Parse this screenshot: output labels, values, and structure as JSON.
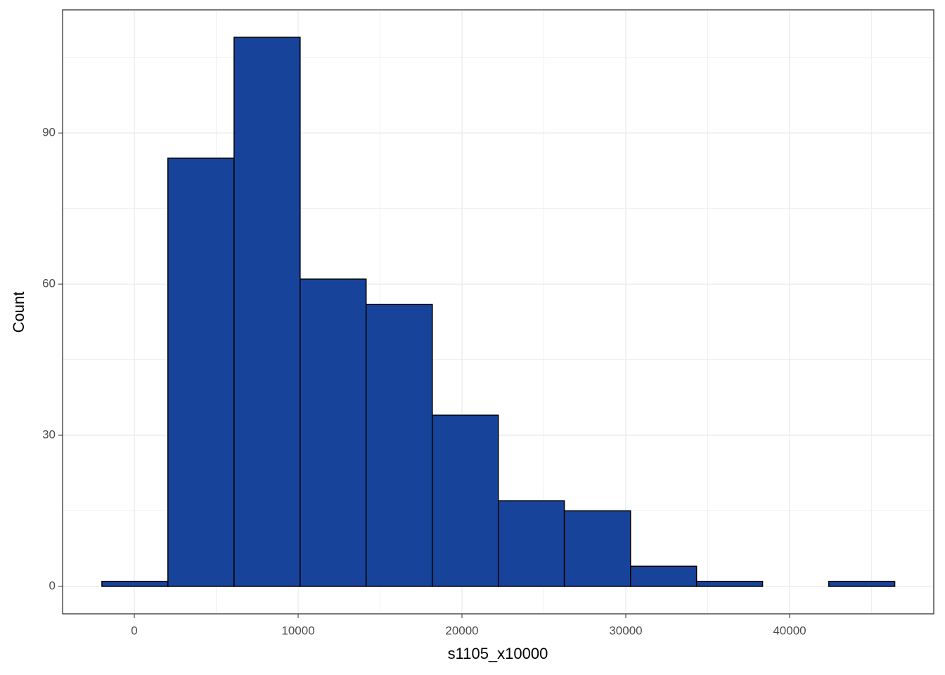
{
  "chart_data": {
    "type": "histogram",
    "x_label": "s1105_x10000",
    "y_label": "Count",
    "bins": [
      -1980,
      2050,
      6090,
      10120,
      14150,
      18190,
      22220,
      26250,
      30290,
      34320,
      38350,
      42390,
      46420
    ],
    "values": [
      1,
      85,
      109,
      61,
      56,
      34,
      17,
      15,
      4,
      1,
      0,
      1
    ],
    "color": "#17439a",
    "edge_color": "#000000",
    "xlim": [
      -4380,
      48800
    ],
    "ylim": [
      -5.45,
      114.45
    ],
    "xticks": [
      0,
      10000,
      20000,
      30000,
      40000
    ],
    "yticks": [
      0,
      30,
      60,
      90
    ],
    "x_minor_grid": [
      5000,
      15000,
      25000,
      35000,
      45000
    ],
    "y_minor_grid": [
      15,
      45,
      75,
      105
    ],
    "grid": true
  }
}
